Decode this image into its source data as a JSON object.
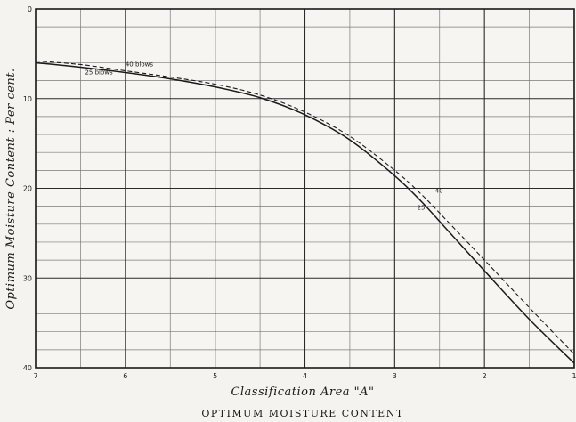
{
  "chart_data": {
    "type": "line",
    "title": "",
    "caption": "OPTIMUM MOISTURE CONTENT",
    "xlabel": "Classification Area \"A\"",
    "ylabel": "Optimum Moisture Content : Per cent.",
    "xlim": [
      7,
      1
    ],
    "ylim": [
      0,
      40
    ],
    "x_ticks": [
      7,
      6,
      5,
      4,
      3,
      2,
      1
    ],
    "x_tick_labels": [
      "7",
      "6",
      "5",
      "4",
      "3",
      "2",
      "1"
    ],
    "y_ticks": [
      0,
      10,
      20,
      30,
      40
    ],
    "y_tick_labels": [
      "0",
      "10",
      "20",
      "30",
      "40"
    ],
    "y_inverted": true,
    "grid": true,
    "series": [
      {
        "name": "40",
        "style": "dashed",
        "x": [
          7,
          6.5,
          6,
          5.5,
          5,
          4.5,
          4,
          3.5,
          3,
          2.7,
          2.4,
          2,
          1.5,
          1
        ],
        "y": [
          5.8,
          6.2,
          6.9,
          7.6,
          8.4,
          9.6,
          11.5,
          14.2,
          18.0,
          20.7,
          23.8,
          28.0,
          33.3,
          38.5
        ]
      },
      {
        "name": "25",
        "style": "solid",
        "x": [
          7,
          6.5,
          6,
          5.5,
          5,
          4.5,
          4,
          3.5,
          3,
          2.7,
          2.4,
          2,
          1.5,
          1
        ],
        "y": [
          6.0,
          6.5,
          7.1,
          7.8,
          8.7,
          9.9,
          11.8,
          14.6,
          18.6,
          21.5,
          24.8,
          29.2,
          34.6,
          39.5
        ]
      }
    ],
    "annotations": [
      {
        "text": "40 blows",
        "x": 6.0,
        "y": 6.4
      },
      {
        "text": "25 blows",
        "x": 6.45,
        "y": 7.3
      },
      {
        "text": "40",
        "x": 2.55,
        "y": 20.5
      },
      {
        "text": "25",
        "x": 2.75,
        "y": 22.4
      }
    ]
  }
}
